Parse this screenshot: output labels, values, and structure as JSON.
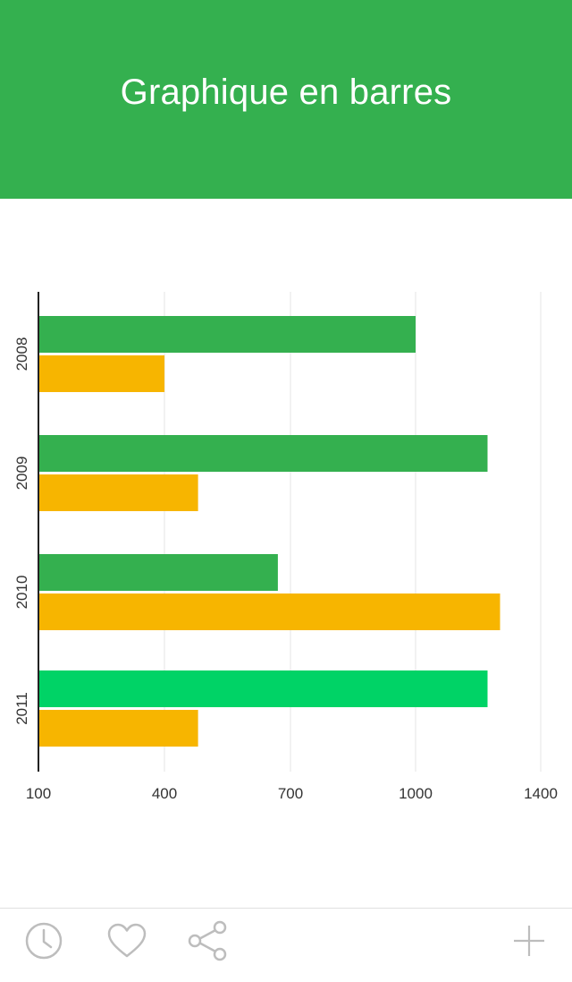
{
  "header": {
    "title": "Graphique en barres"
  },
  "colors": {
    "header_bg": "#34b04f",
    "series_green": "#34b04f",
    "series_bright_green": "#00d366",
    "series_yellow": "#f7b500",
    "icon_gray": "#bdbdbd",
    "axis": "#222222",
    "grid": "#e6e6e6"
  },
  "chart_data": {
    "type": "bar",
    "orientation": "horizontal",
    "title": "",
    "xlabel": "",
    "ylabel": "",
    "categories": [
      "2008",
      "2009",
      "2010",
      "2011"
    ],
    "series": [
      {
        "values": [
          1000,
          1230,
          670,
          1230
        ],
        "colors": [
          "#34b04f",
          "#34b04f",
          "#34b04f",
          "#00d366"
        ]
      },
      {
        "values": [
          400,
          480,
          1270,
          480
        ],
        "color": "#f7b500"
      }
    ],
    "xlim": [
      100,
      1400
    ],
    "xticks": [
      100,
      400,
      700,
      1000,
      1400
    ],
    "grid": true,
    "legend": "none"
  },
  "toolbar": {
    "icons": [
      "clock-icon",
      "heart-icon",
      "share-icon",
      "plus-icon"
    ]
  }
}
